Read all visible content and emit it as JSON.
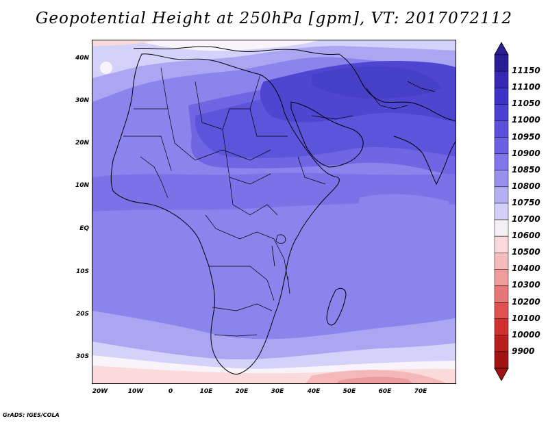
{
  "title": "Geopotential Height at 250hPa [gpm], VT: 2017072112",
  "credit": "GrADS: IGES/COLA",
  "lat_labels": [
    "40N",
    "30N",
    "20N",
    "10N",
    "EQ",
    "10S",
    "20S",
    "30S"
  ],
  "lon_labels": [
    "20W",
    "10W",
    "0",
    "10E",
    "20E",
    "30E",
    "40E",
    "50E",
    "60E",
    "70E"
  ],
  "colorbar": {
    "labels": [
      "11150",
      "11100",
      "11050",
      "11000",
      "10950",
      "10900",
      "10850",
      "10800",
      "10750",
      "10700",
      "10600",
      "10500",
      "10400",
      "10300",
      "10200",
      "10100",
      "10000",
      "9900"
    ],
    "colors": [
      "#2a1e96",
      "#3428b4",
      "#3c32c8",
      "#4a40d2",
      "#5a50dc",
      "#6a60e4",
      "#7e76ea",
      "#9890ee",
      "#b4b0f4",
      "#d2d0fa",
      "#f4f0f4",
      "#fadada",
      "#f6bcbc",
      "#f09c9c",
      "#e87878",
      "#e05252",
      "#d03232",
      "#b81e1e",
      "#a01414"
    ]
  },
  "map_colors": {
    "cold_red": "#f4b8b8",
    "pale_pink": "#fadada",
    "white": "#f8f4fa",
    "pale_blue": "#d4d2fa",
    "light_blue": "#aaa6f2",
    "mid_blue": "#8a84ec",
    "blue": "#7a72e6",
    "deep_blue": "#6e66e2",
    "dark_blue": "#5c54da",
    "darkest_blue": "#4e46d0"
  },
  "chart_data": {
    "type": "heatmap",
    "title": "Geopotential Height at 250hPa [gpm], VT: 2017072112",
    "variable": "Geopotential Height at 250hPa",
    "units": "gpm",
    "valid_time": "2017072112",
    "lon_range": [
      "20W",
      "80E"
    ],
    "lat_range": [
      "37S",
      "45N"
    ],
    "levels": [
      9900,
      10000,
      10100,
      10200,
      10300,
      10400,
      10500,
      10600,
      10700,
      10750,
      10800,
      10850,
      10900,
      10950,
      11000,
      11050,
      11100,
      11150
    ]
  }
}
